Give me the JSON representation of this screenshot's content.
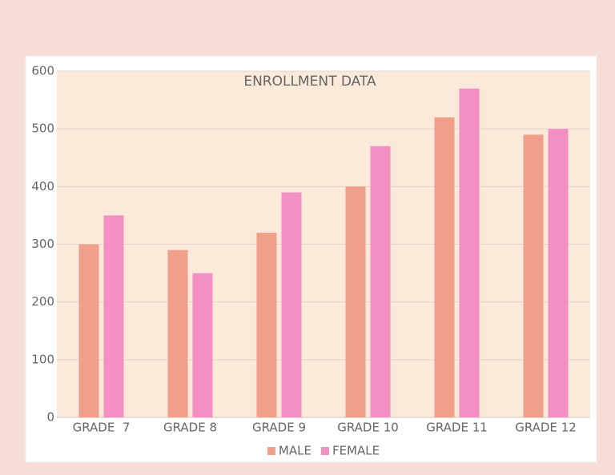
{
  "chart_data": {
    "type": "bar",
    "title": "ENROLLMENT DATA",
    "categories": [
      "GRADE  7",
      "GRADE 8",
      "GRADE 9",
      "GRADE 10",
      "GRADE 11",
      "GRADE 12"
    ],
    "series": [
      {
        "name": "MALE",
        "color": "#f0a08a",
        "values": [
          300,
          290,
          320,
          400,
          520,
          490
        ]
      },
      {
        "name": "FEMALE",
        "color": "#f48fc4",
        "values": [
          350,
          250,
          390,
          470,
          570,
          500
        ]
      }
    ],
    "ylim": [
      0,
      600
    ],
    "yticks": [
      0,
      100,
      200,
      300,
      400,
      500,
      600
    ],
    "grid": true,
    "legend": "bottom"
  }
}
